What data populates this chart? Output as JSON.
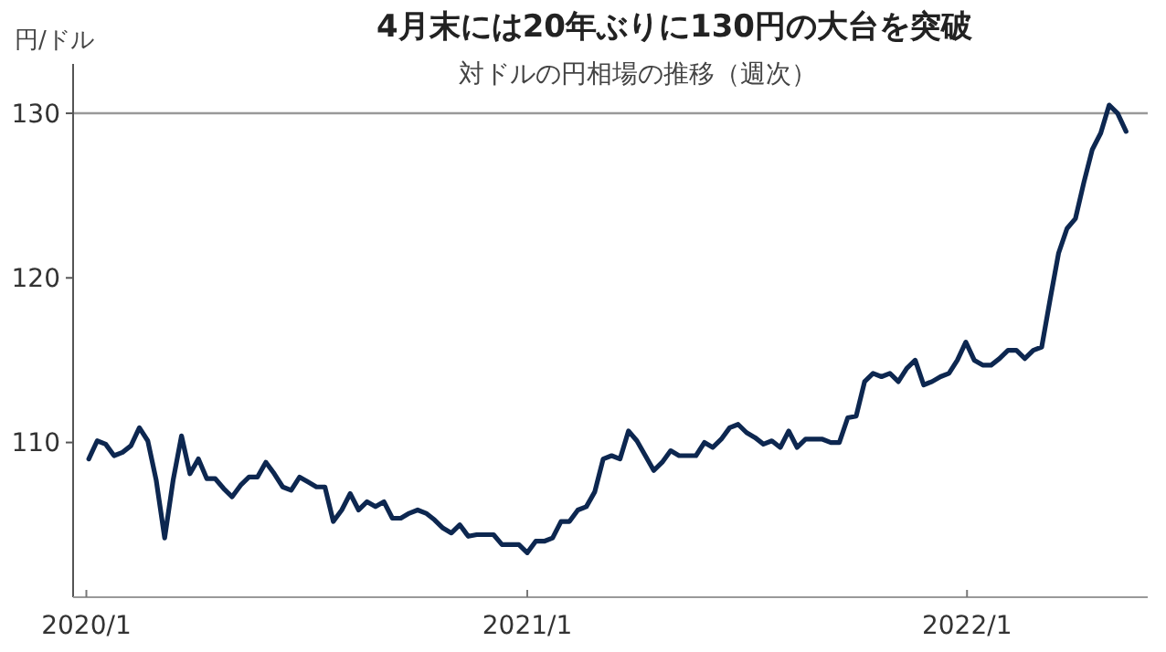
{
  "chart_data": {
    "type": "line",
    "title": "4月末には20年ぶりに130円の大台を突破",
    "subtitle": "対ドルの円相場の推移（週次）",
    "ylabel": "円/ドル",
    "x": [
      "2020-01-03",
      "2020-01-10",
      "2020-01-17",
      "2020-01-24",
      "2020-01-31",
      "2020-02-07",
      "2020-02-14",
      "2020-02-21",
      "2020-02-28",
      "2020-03-06",
      "2020-03-13",
      "2020-03-20",
      "2020-03-27",
      "2020-04-03",
      "2020-04-10",
      "2020-04-17",
      "2020-04-24",
      "2020-05-01",
      "2020-05-08",
      "2020-05-15",
      "2020-05-22",
      "2020-05-29",
      "2020-06-05",
      "2020-06-12",
      "2020-06-19",
      "2020-06-26",
      "2020-07-03",
      "2020-07-10",
      "2020-07-17",
      "2020-07-24",
      "2020-07-31",
      "2020-08-07",
      "2020-08-14",
      "2020-08-21",
      "2020-08-28",
      "2020-09-04",
      "2020-09-11",
      "2020-09-18",
      "2020-09-25",
      "2020-10-02",
      "2020-10-09",
      "2020-10-16",
      "2020-10-23",
      "2020-10-30",
      "2020-11-06",
      "2020-11-13",
      "2020-11-20",
      "2020-11-27",
      "2020-12-04",
      "2020-12-11",
      "2020-12-18",
      "2020-12-25",
      "2021-01-01",
      "2021-01-08",
      "2021-01-15",
      "2021-01-22",
      "2021-01-29",
      "2021-02-05",
      "2021-02-12",
      "2021-02-19",
      "2021-02-26",
      "2021-03-05",
      "2021-03-12",
      "2021-03-19",
      "2021-03-26",
      "2021-04-02",
      "2021-04-09",
      "2021-04-16",
      "2021-04-23",
      "2021-04-30",
      "2021-05-07",
      "2021-05-14",
      "2021-05-21",
      "2021-05-28",
      "2021-06-04",
      "2021-06-11",
      "2021-06-18",
      "2021-06-25",
      "2021-07-02",
      "2021-07-09",
      "2021-07-16",
      "2021-07-23",
      "2021-07-30",
      "2021-08-06",
      "2021-08-13",
      "2021-08-20",
      "2021-08-27",
      "2021-09-03",
      "2021-09-10",
      "2021-09-17",
      "2021-09-24",
      "2021-10-01",
      "2021-10-08",
      "2021-10-15",
      "2021-10-22",
      "2021-10-29",
      "2021-11-05",
      "2021-11-12",
      "2021-11-19",
      "2021-11-26",
      "2021-12-03",
      "2021-12-10",
      "2021-12-17",
      "2021-12-24",
      "2021-12-31",
      "2022-01-07",
      "2022-01-14",
      "2022-01-21",
      "2022-01-28",
      "2022-02-04",
      "2022-02-11",
      "2022-02-18",
      "2022-02-25",
      "2022-03-04",
      "2022-03-11",
      "2022-03-18",
      "2022-03-25",
      "2022-04-01",
      "2022-04-08",
      "2022-04-15",
      "2022-04-22",
      "2022-04-29",
      "2022-05-06",
      "2022-05-13"
    ],
    "series": [
      {
        "color": "#0d2750",
        "values": [
          109.0,
          110.1,
          109.9,
          109.2,
          109.4,
          109.8,
          110.9,
          110.1,
          107.7,
          104.2,
          107.7,
          110.4,
          108.1,
          109.0,
          107.8,
          107.8,
          107.2,
          106.7,
          107.4,
          107.9,
          107.9,
          108.8,
          108.1,
          107.3,
          107.1,
          107.9,
          107.6,
          107.3,
          107.3,
          105.2,
          105.9,
          106.9,
          105.9,
          106.4,
          106.1,
          106.4,
          105.4,
          105.4,
          105.7,
          105.9,
          105.7,
          105.3,
          104.8,
          104.5,
          105.0,
          104.3,
          104.4,
          104.4,
          104.4,
          103.8,
          103.8,
          103.8,
          103.3,
          104.0,
          104.0,
          104.2,
          105.2,
          105.2,
          105.9,
          106.1,
          107.0,
          109.0,
          109.2,
          109.0,
          110.7,
          110.1,
          109.2,
          108.3,
          108.8,
          109.5,
          109.2,
          109.2,
          109.2,
          110.0,
          109.7,
          110.2,
          110.9,
          111.1,
          110.6,
          110.3,
          109.9,
          110.1,
          109.7,
          110.7,
          109.7,
          110.2,
          110.2,
          110.2,
          110.0,
          110.0,
          111.5,
          111.6,
          113.7,
          114.2,
          114.0,
          114.2,
          113.7,
          114.5,
          115.0,
          113.5,
          113.7,
          114.0,
          114.2,
          115.0,
          116.1,
          115.0,
          114.7,
          114.7,
          115.1,
          115.6,
          115.6,
          115.1,
          115.6,
          115.8,
          118.7,
          121.5,
          123.0,
          123.6,
          125.8,
          127.8,
          128.8,
          130.5,
          130.0,
          128.9
        ]
      }
    ],
    "xlim": [
      "2019-12-21",
      "2022-05-31"
    ],
    "xticks": [
      {
        "value": "2020-01-01",
        "label": "2020/1"
      },
      {
        "value": "2021-01-01",
        "label": "2021/1"
      },
      {
        "value": "2022-01-01",
        "label": "2022/1"
      }
    ],
    "ylim": [
      100.6,
      133
    ],
    "yticks": [
      110,
      120,
      130
    ],
    "ref_lines": [
      {
        "axis": "y",
        "value": 130,
        "color": "#999999"
      }
    ],
    "marker": "none",
    "line_style": "solid"
  }
}
